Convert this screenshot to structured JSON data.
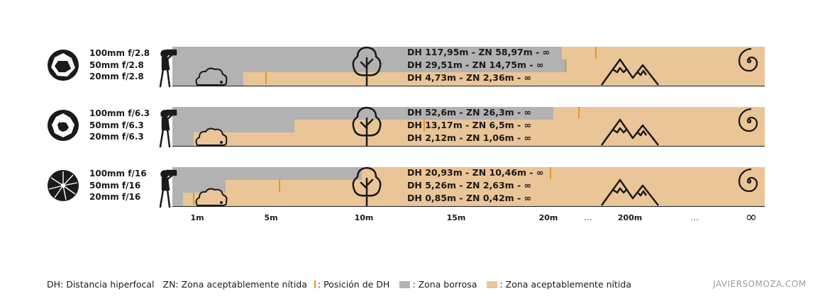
{
  "groups": [
    {
      "aperture_icon": "aperture-icon-wide",
      "lens_labels": [
        "100mm f/2.8",
        "50mm f/2.8",
        "20mm f/2.8"
      ],
      "dh_texts": [
        "DH 117,95m - ZN 58,97m - ∞",
        "DH 29,51m - ZN 14,75m - ∞",
        "DH 4,73m - ZN 2,36m - ∞"
      ]
    },
    {
      "aperture_icon": "aperture-icon-medium",
      "lens_labels": [
        "100mm f/6.3",
        "50mm f/6.3",
        "20mm f/6.3"
      ],
      "dh_texts": [
        "DH 52,6m - ZN 26,3m - ∞",
        "DH 13,17m - ZN 6,5m - ∞",
        "DH 2,12m - ZN 1,06m - ∞"
      ]
    },
    {
      "aperture_icon": "aperture-icon-narrow",
      "lens_labels": [
        "100mm f/16",
        "50mm f/16",
        "20mm f/16"
      ],
      "dh_texts": [
        "DH 20,93m - ZN 10,46m - ∞",
        "DH 5,26m - ZN 2,63m - ∞",
        "DH 0,85m - ZN 0,42m - ∞"
      ]
    }
  ],
  "axis": {
    "labels": [
      "1m",
      "5m",
      "10m",
      "15m",
      "20m",
      "200m"
    ],
    "ellipsis": "…",
    "infinity": "∞"
  },
  "legend": {
    "dh": "DH: Distancia hiperfocal",
    "zn": "ZN: Zona aceptablemente nítida",
    "position": ": Posición de DH",
    "blurry": ": Zona borrosa",
    "sharp": ": Zona aceptablemente nítida"
  },
  "brand": "JAVIERSOMOZA.COM",
  "colors": {
    "blurry": "#b2b2b2",
    "sharp": "#eac597",
    "dh_marker": "#e5962f",
    "icon": "#1a1a1a"
  },
  "icons": [
    "photographer-icon",
    "bush-icon",
    "tree-icon",
    "mountains-icon",
    "spiral-infinity-icon",
    "aperture-icon"
  ]
}
